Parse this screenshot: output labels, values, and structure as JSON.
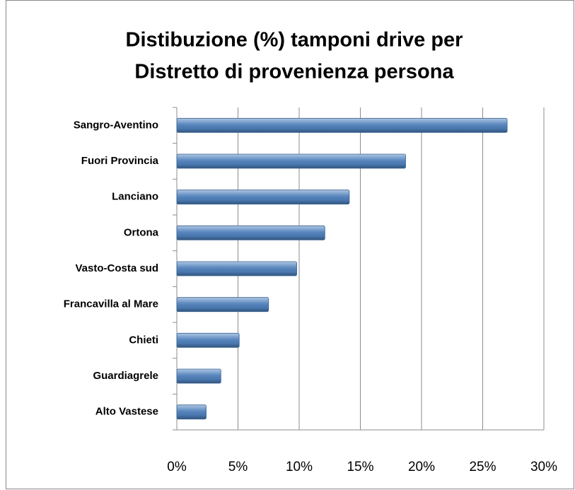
{
  "chart_data": {
    "type": "bar",
    "orientation": "horizontal",
    "title": [
      "Distibuzione (%) tamponi drive per",
      "Distretto di provenienza persona"
    ],
    "categories": [
      "Sangro-Aventino",
      "Fuori Provincia",
      "Lanciano",
      "Ortona",
      "Vasto-Costa sud",
      "Francavilla al Mare",
      "Chieti",
      "Guardiagrele",
      "Alto Vastese"
    ],
    "values": [
      27.0,
      18.7,
      14.1,
      12.1,
      9.8,
      7.5,
      5.1,
      3.6,
      2.4
    ],
    "color": "#4f81bd",
    "xlim": [
      0,
      30
    ],
    "xticks": [
      {
        "value": 0,
        "label": "0%"
      },
      {
        "value": 5,
        "label": "5%"
      },
      {
        "value": 10,
        "label": "10%"
      },
      {
        "value": 15,
        "label": "15%"
      },
      {
        "value": 20,
        "label": "20%"
      },
      {
        "value": 25,
        "label": "25%"
      },
      {
        "value": 30,
        "label": "30%"
      }
    ],
    "grid": true
  }
}
